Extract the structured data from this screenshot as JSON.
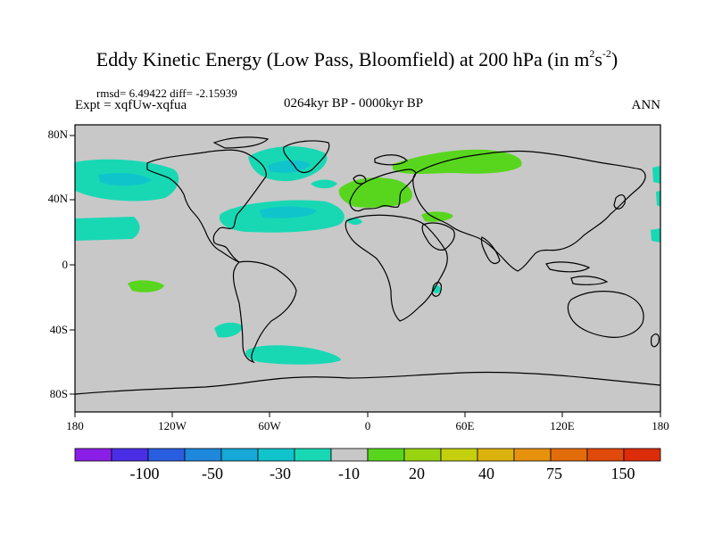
{
  "title": {
    "main": "Eddy Kinetic Energy (Low Pass, Bloomfield) at 200 hPa (in m",
    "sup1": "2",
    "mid": "s",
    "sup2": "-2",
    "close": ")"
  },
  "stats": "rmsd= 6.49422  diff= -2.15939",
  "experiment": "Expt = xqfUw-xqfua",
  "period": "0264kyr BP - 0000kyr BP",
  "season": "ANN",
  "lat_labels": [
    "80N",
    "40N",
    "0",
    "40S",
    "80S"
  ],
  "lon_labels": [
    "180",
    "120W",
    "60W",
    "0",
    "60E",
    "120E",
    "180"
  ],
  "colorbar": {
    "colors": [
      "#8a1ee6",
      "#4a2ee6",
      "#2a5ee0",
      "#1e88dc",
      "#16a8d6",
      "#10c4cc",
      "#18d8b4",
      "#c8c8c8",
      "#58d61e",
      "#98d410",
      "#c4d00e",
      "#dcb20c",
      "#e6920c",
      "#e26c0a",
      "#e04a0a",
      "#dc2c0a"
    ],
    "labels": [
      "-100",
      "-50",
      "-30",
      "-10",
      "20",
      "40",
      "75",
      "150"
    ]
  },
  "map": {
    "ocean_color": "#c8c8c8",
    "positive_color": "#58d61e",
    "negative_color": "#18d8b4",
    "strong_negative_color": "#10c4cc"
  }
}
